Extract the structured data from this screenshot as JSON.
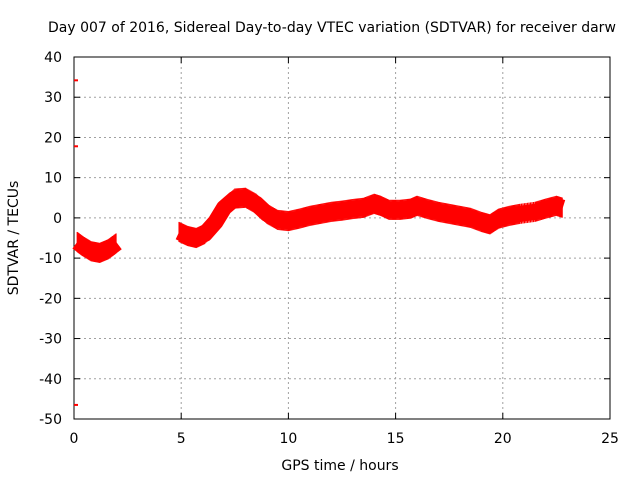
{
  "chart_data": {
    "type": "line",
    "title": "Day 007 of 2016, Sidereal Day-to-day VTEC variation (SDTVAR) for receiver darw",
    "xlabel": "GPS time / hours",
    "ylabel": "SDTVAR / TECUs",
    "xlim": [
      0,
      25
    ],
    "ylim": [
      -50,
      40
    ],
    "xticks": [
      0,
      5,
      10,
      15,
      20,
      25
    ],
    "yticks": [
      -50,
      -40,
      -30,
      -20,
      -10,
      0,
      10,
      20,
      30,
      40
    ],
    "grid": true,
    "color": "#ff0000",
    "series": [
      {
        "name": "SDTVAR",
        "band_width": 2.5,
        "segments": [
          [
            [
              0.15,
              -6
            ],
            [
              0.4,
              -7
            ],
            [
              0.8,
              -8.3
            ],
            [
              1.2,
              -8.7
            ],
            [
              1.6,
              -7.8
            ],
            [
              2.0,
              -6.2
            ]
          ],
          [
            [
              4.9,
              -3.5
            ],
            [
              5.3,
              -4.5
            ],
            [
              5.7,
              -5.0
            ],
            [
              6.1,
              -4.0
            ],
            [
              6.6,
              -1.0
            ],
            [
              7.0,
              2.5
            ],
            [
              7.5,
              4.8
            ],
            [
              8.0,
              5.0
            ],
            [
              8.5,
              3.5
            ],
            [
              9.0,
              1.0
            ],
            [
              9.5,
              -0.5
            ],
            [
              10.0,
              -0.8
            ],
            [
              10.5,
              -0.2
            ],
            [
              11.0,
              0.5
            ],
            [
              11.5,
              1.0
            ],
            [
              12.0,
              1.5
            ],
            [
              12.5,
              1.8
            ],
            [
              13.0,
              2.2
            ],
            [
              13.5,
              2.5
            ],
            [
              14.0,
              3.5
            ],
            [
              14.3,
              3.0
            ],
            [
              14.7,
              2.0
            ],
            [
              15.2,
              2.0
            ],
            [
              15.7,
              2.3
            ],
            [
              16.0,
              3.0
            ],
            [
              16.5,
              2.2
            ],
            [
              17.0,
              1.5
            ],
            [
              17.5,
              1.0
            ],
            [
              18.0,
              0.5
            ],
            [
              18.5,
              0.0
            ],
            [
              19.0,
              -1.0
            ],
            [
              19.4,
              -1.6
            ],
            [
              19.8,
              -0.2
            ],
            [
              20.3,
              0.5
            ],
            [
              20.8,
              1.0
            ],
            [
              21.5,
              1.5
            ],
            [
              22.0,
              2.3
            ],
            [
              22.5,
              3.0
            ],
            [
              22.8,
              2.5
            ]
          ]
        ],
        "outliers": [
          [
            0.0,
            34.2
          ],
          [
            0.0,
            17.8
          ],
          [
            0.0,
            -46.5
          ]
        ]
      }
    ]
  }
}
